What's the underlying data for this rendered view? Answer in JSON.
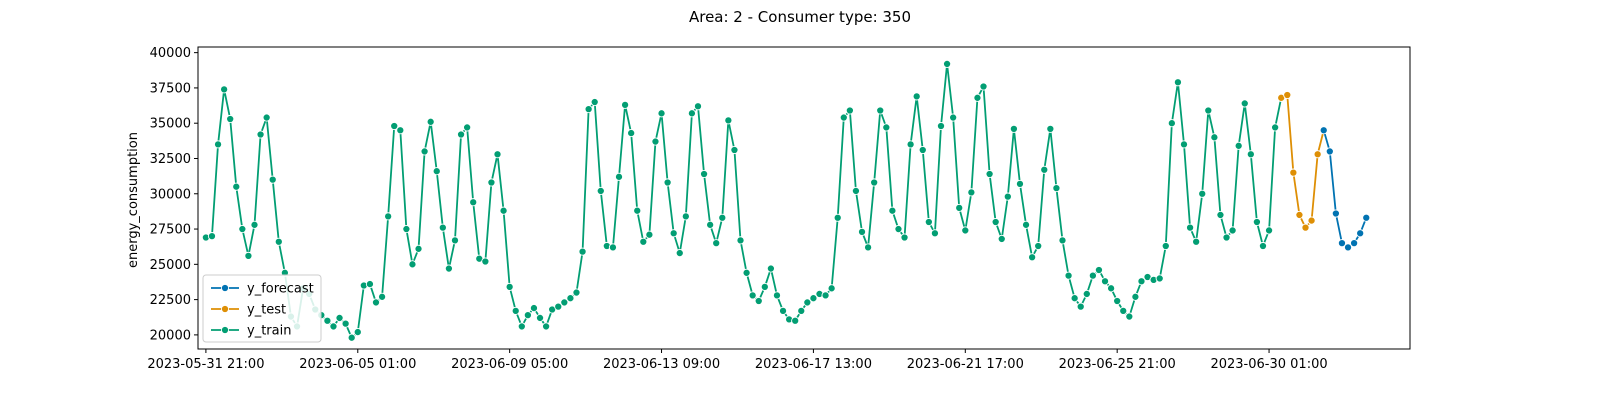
{
  "chart_data": {
    "type": "line",
    "title": "Area: 2 - Consumer type: 350",
    "xlabel": "",
    "ylabel": "energy_consumption",
    "ylim": [
      19000,
      40400
    ],
    "yticks": [
      20000,
      22500,
      25000,
      27500,
      30000,
      32500,
      35000,
      37500,
      40000
    ],
    "x_start": "2023-05-31 21:00",
    "x_interval_hours": 4,
    "xticks": [
      {
        "label": "2023-05-31 21:00",
        "index": 0
      },
      {
        "label": "2023-06-05 01:00",
        "index": 25
      },
      {
        "label": "2023-06-09 05:00",
        "index": 50
      },
      {
        "label": "2023-06-13 09:00",
        "index": 75
      },
      {
        "label": "2023-06-17 13:00",
        "index": 100
      },
      {
        "label": "2023-06-21 17:00",
        "index": 125
      },
      {
        "label": "2023-06-25 21:00",
        "index": 150
      },
      {
        "label": "2023-06-30 01:00",
        "index": 175
      }
    ],
    "legend": {
      "position": "lower-left"
    },
    "grid": false,
    "series": [
      {
        "name": "y_train",
        "color": "#029e73",
        "start": 0,
        "values": [
          26900,
          27000,
          33500,
          37400,
          35300,
          30500,
          27500,
          25600,
          27800,
          34200,
          35400,
          31000,
          26600,
          24400,
          21300,
          20600,
          23300,
          22900,
          21800,
          21400,
          21000,
          20600,
          21200,
          20800,
          19800,
          20200,
          23500,
          23600,
          22300,
          22700,
          28400,
          34800,
          34500,
          27500,
          25000,
          26100,
          33000,
          35100,
          31600,
          27600,
          24700,
          26700,
          34200,
          34700,
          29400,
          25400,
          25200,
          30800,
          32800,
          28800,
          23400,
          21700,
          20600,
          21400,
          21900,
          21200,
          20600,
          21800,
          22000,
          22300,
          22600,
          23000,
          25900,
          36000,
          36500,
          30200,
          26300,
          26200,
          31200,
          36300,
          34300,
          28800,
          26600,
          27100,
          33700,
          35700,
          30800,
          27200,
          25800,
          28400,
          35700,
          36200,
          31400,
          27800,
          26500,
          28300,
          35200,
          33100,
          26700,
          24400,
          22800,
          22400,
          23400,
          24700,
          22800,
          21700,
          21100,
          21000,
          21700,
          22300,
          22600,
          22900,
          22800,
          23300,
          28300,
          35400,
          35900,
          30200,
          27300,
          26200,
          30800,
          35900,
          34700,
          28800,
          27500,
          26900,
          33500,
          36900,
          33100,
          28000,
          27200,
          34800,
          39200,
          35400,
          29000,
          27400,
          30100,
          36800,
          37600,
          31400,
          28000,
          26800,
          29800,
          34600,
          30700,
          27800,
          25500,
          26300,
          31700,
          34600,
          30400,
          26700,
          24200,
          22600,
          22000,
          22900,
          24200,
          24600,
          23800,
          23300,
          22400,
          21700,
          21300,
          22700,
          23800,
          24100,
          23900,
          24000,
          26300,
          35000,
          37900,
          33500,
          27600,
          26600,
          30000,
          35900,
          34000,
          28500,
          26900,
          27400,
          33400,
          36400,
          32800,
          28000,
          26300,
          27400,
          34700,
          36800
        ]
      },
      {
        "name": "y_test",
        "color": "#de8f05",
        "start": 177,
        "values": [
          36800,
          37000,
          31500,
          28500,
          27600,
          28100,
          32800,
          34500
        ]
      },
      {
        "name": "y_forecast",
        "color": "#0173b2",
        "start": 184,
        "values": [
          34500,
          33000,
          28600,
          26500,
          26200,
          26500,
          27200,
          28300
        ]
      }
    ],
    "legend_order": [
      "y_forecast",
      "y_test",
      "y_train"
    ]
  }
}
